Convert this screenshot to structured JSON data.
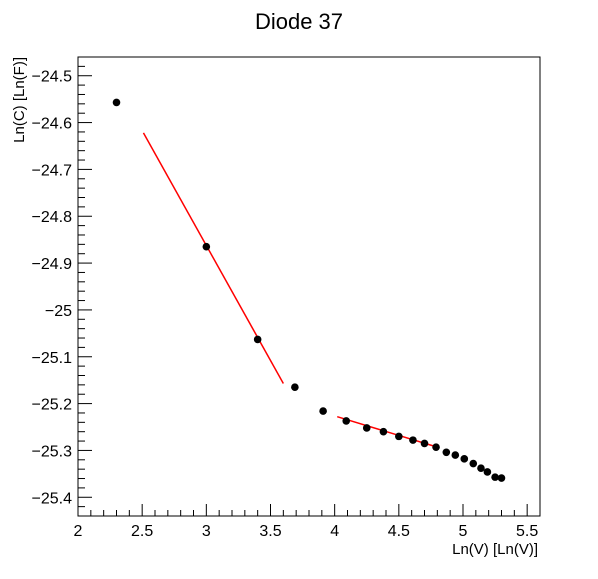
{
  "chart_data": {
    "type": "scatter",
    "title": "Diode 37",
    "xlabel": "Ln(V) [Ln(V)]",
    "ylabel": "Ln(C) [Ln(F)]",
    "xlim": [
      2.0,
      5.6
    ],
    "ylim": [
      -25.44,
      -24.46
    ],
    "grid": false,
    "x_ticks": [
      {
        "value": 2.0,
        "label": "2"
      },
      {
        "value": 2.5,
        "label": "2.5"
      },
      {
        "value": 3.0,
        "label": "3"
      },
      {
        "value": 3.5,
        "label": "3.5"
      },
      {
        "value": 4.0,
        "label": "4"
      },
      {
        "value": 4.5,
        "label": "4.5"
      },
      {
        "value": 5.0,
        "label": "5"
      },
      {
        "value": 5.5,
        "label": "5.5"
      }
    ],
    "y_ticks": [
      {
        "value": -24.5,
        "label": "−24.5"
      },
      {
        "value": -24.6,
        "label": "−24.6"
      },
      {
        "value": -24.7,
        "label": "−24.7"
      },
      {
        "value": -24.8,
        "label": "−24.8"
      },
      {
        "value": -24.9,
        "label": "−24.9"
      },
      {
        "value": -25.0,
        "label": "−25"
      },
      {
        "value": -25.1,
        "label": "−25.1"
      },
      {
        "value": -25.2,
        "label": "−25.2"
      },
      {
        "value": -25.3,
        "label": "−25.3"
      },
      {
        "value": -25.4,
        "label": "−25.4"
      }
    ],
    "points": [
      {
        "x": 2.3,
        "y": -24.557
      },
      {
        "x": 3.0,
        "y": -24.865
      },
      {
        "x": 3.4,
        "y": -25.063
      },
      {
        "x": 3.69,
        "y": -25.165
      },
      {
        "x": 3.91,
        "y": -25.216
      },
      {
        "x": 4.09,
        "y": -25.237
      },
      {
        "x": 4.25,
        "y": -25.252
      },
      {
        "x": 4.38,
        "y": -25.26
      },
      {
        "x": 4.5,
        "y": -25.27
      },
      {
        "x": 4.61,
        "y": -25.278
      },
      {
        "x": 4.7,
        "y": -25.285
      },
      {
        "x": 4.79,
        "y": -25.293
      },
      {
        "x": 4.87,
        "y": -25.304
      },
      {
        "x": 4.94,
        "y": -25.31
      },
      {
        "x": 5.01,
        "y": -25.318
      },
      {
        "x": 5.08,
        "y": -25.328
      },
      {
        "x": 5.14,
        "y": -25.338
      },
      {
        "x": 5.19,
        "y": -25.346
      },
      {
        "x": 5.25,
        "y": -25.357
      },
      {
        "x": 5.3,
        "y": -25.359
      }
    ],
    "fits": [
      {
        "x": [
          2.51,
          3.6
        ],
        "y": [
          -24.622,
          -25.157
        ],
        "color": "#ff0000"
      },
      {
        "x": [
          4.02,
          4.8
        ],
        "y": [
          -25.228,
          -25.293
        ],
        "color": "#ff0000"
      }
    ],
    "marker_color": "#000000",
    "axis_color": "#000000"
  }
}
